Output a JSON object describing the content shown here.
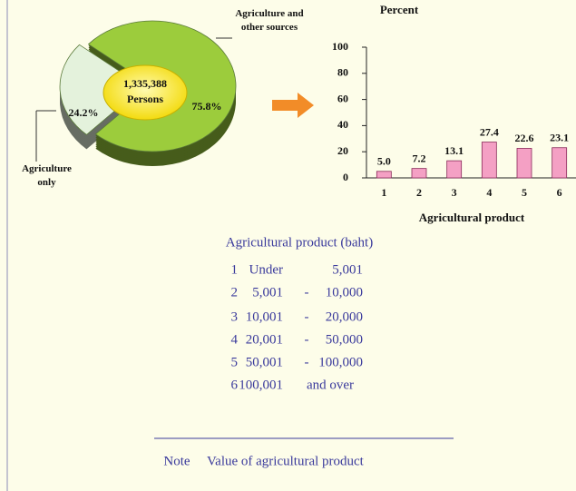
{
  "chart_data": [
    {
      "type": "pie",
      "categories": [
        "Agriculture only",
        "Agriculture and other sources"
      ],
      "values": [
        24.2,
        75.8
      ],
      "value_labels": [
        "24.2%",
        "75.8%"
      ],
      "colors": [
        "#e4f2dc",
        "#9ccc3c"
      ],
      "center_value": "1,335,388",
      "center_unit": "Persons"
    },
    {
      "type": "bar",
      "ylabel": "Percent",
      "xlabel": "Agricultural product",
      "categories": [
        "1",
        "2",
        "3",
        "4",
        "5",
        "6"
      ],
      "values": [
        5.0,
        7.2,
        13.1,
        27.4,
        22.6,
        23.1
      ],
      "value_labels": [
        "5.0",
        "7.2",
        "13.1",
        "27.4",
        "22.6",
        "23.1"
      ],
      "color": "#f4a0c4",
      "ylim": [
        0,
        100
      ],
      "yticks": [
        0,
        20,
        40,
        60,
        80,
        100
      ],
      "grid": false
    }
  ],
  "legend": {
    "title": "Agricultural product (baht)",
    "rows": [
      {
        "num": "1",
        "from": "Under",
        "to": "5,001"
      },
      {
        "num": "2",
        "from": "5,001",
        "dash": "-",
        "to": "10,000"
      },
      {
        "num": "3",
        "from": "10,001",
        "dash": "-",
        "to": "20,000"
      },
      {
        "num": "4",
        "from": "20,001",
        "dash": "-",
        "to": "50,000"
      },
      {
        "num": "5",
        "from": "50,001",
        "dash": "-",
        "to": "100,000"
      },
      {
        "num": "6",
        "from": "100,001",
        "to": "and over"
      }
    ]
  },
  "note": {
    "label": "Note",
    "text": "Value of agricultural product"
  }
}
